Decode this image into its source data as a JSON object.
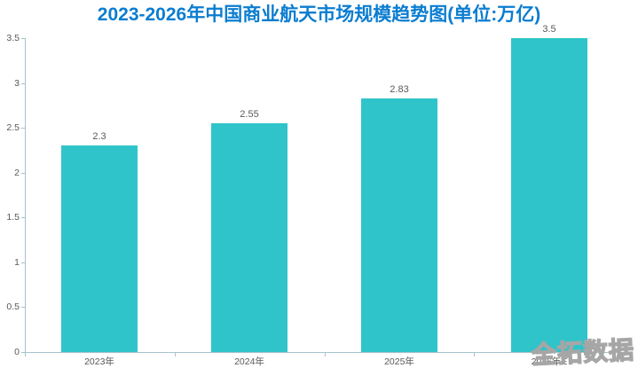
{
  "title": "2023-2026年中国商业航天市场规模趋势图(单位:万亿)",
  "watermark_text": "全拓数据",
  "colors": {
    "bar": "#2fc4c9",
    "axis": "#a6c3ce",
    "text_label": "#595959",
    "title": "#0b7dd0",
    "watermark": "#a6a6a6",
    "background": "#ffffff"
  },
  "chart_data": {
    "type": "bar",
    "title": "2023-2026年中国商业航天市场规模趋势图(单位:万亿)",
    "categories": [
      "2023年",
      "2024年",
      "2025年",
      "2026年E"
    ],
    "values": [
      2.3,
      2.55,
      2.83,
      3.5
    ],
    "value_labels": [
      "2.3",
      "2.55",
      "2.83",
      "3.5"
    ],
    "xlabel": "",
    "ylabel": "",
    "ylim": [
      0,
      3.5
    ],
    "y_ticks": [
      0,
      0.5,
      1,
      1.5,
      2,
      2.5,
      3,
      3.5
    ],
    "y_tick_labels": [
      "0",
      "0.5",
      "1",
      "1.5",
      "2",
      "2.5",
      "3",
      "3.5"
    ],
    "grid": false,
    "legend": "none",
    "unit": "万亿"
  }
}
